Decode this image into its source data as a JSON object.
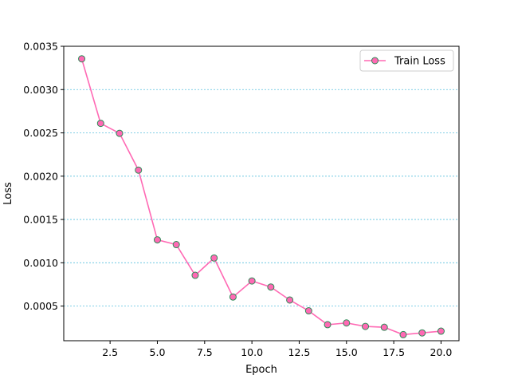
{
  "chart_data": {
    "type": "line",
    "title": "",
    "xlabel": "Epoch",
    "ylabel": "Loss",
    "xlim": [
      0.05,
      20.95
    ],
    "ylim": [
      0.0001,
      0.0035
    ],
    "xticks": [
      2.5,
      5.0,
      7.5,
      10.0,
      12.5,
      15.0,
      17.5,
      20.0
    ],
    "xtick_labels": [
      "2.5",
      "5.0",
      "7.5",
      "10.0",
      "12.5",
      "15.0",
      "17.5",
      "20.0"
    ],
    "yticks": [
      0.0005,
      0.001,
      0.0015,
      0.002,
      0.0025,
      0.003,
      0.0035
    ],
    "ytick_labels": [
      "0.0005",
      "0.0010",
      "0.0015",
      "0.0020",
      "0.0025",
      "0.0030",
      "0.0035"
    ],
    "grid": "horizontal dashed",
    "legend_position": "top-right",
    "series": [
      {
        "name": "Train Loss",
        "line_color": "#ff69b4",
        "marker_face": "#ff69b4",
        "marker_edge": "#2e8b57",
        "x": [
          1,
          2,
          3,
          4,
          5,
          6,
          7,
          8,
          9,
          10,
          11,
          12,
          13,
          14,
          15,
          16,
          17,
          18,
          19,
          20
        ],
        "y": [
          0.003355,
          0.00261,
          0.002495,
          0.00207,
          0.001265,
          0.00121,
          0.000855,
          0.001055,
          0.000605,
          0.00079,
          0.00072,
          0.00057,
          0.000445,
          0.000285,
          0.000305,
          0.000265,
          0.000255,
          0.00017,
          0.00019,
          0.00021
        ]
      }
    ],
    "grid_color": "#5bc0de"
  }
}
